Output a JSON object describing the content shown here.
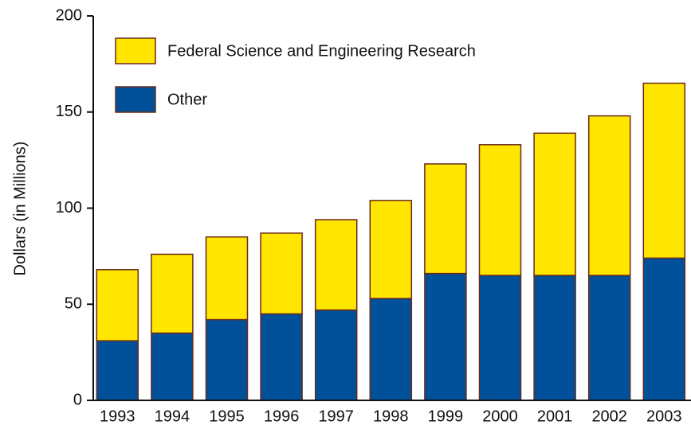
{
  "chart_data": {
    "type": "stacked_bar",
    "y_label": "Dollars (in Millions)",
    "categories": [
      "1993",
      "1994",
      "1995",
      "1996",
      "1997",
      "1998",
      "1999",
      "2000",
      "2001",
      "2002",
      "2003"
    ],
    "series": [
      {
        "name": "Other",
        "color": "#00519a",
        "values": [
          31,
          35,
          42,
          45,
          47,
          53,
          66,
          65,
          65,
          65,
          74
        ]
      },
      {
        "name": "Federal Science and Engineering Research",
        "color": "#ffe600",
        "values": [
          37,
          41,
          43,
          42,
          47,
          51,
          57,
          68,
          74,
          83,
          91
        ]
      }
    ],
    "ylim": [
      0,
      200
    ],
    "yticks": [
      0,
      50,
      100,
      150,
      200
    ]
  }
}
